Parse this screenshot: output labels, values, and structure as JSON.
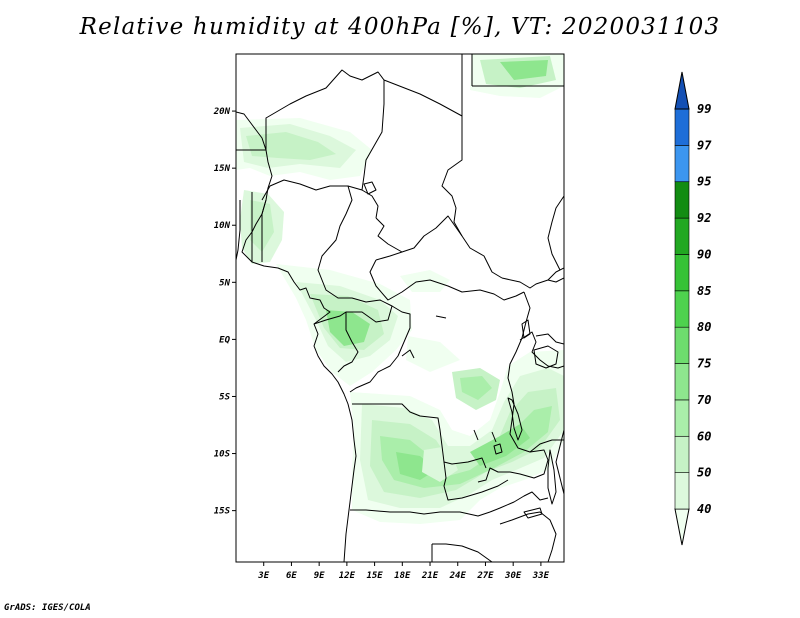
{
  "title": "Relative humidity at 400hPa [%], VT: 2020031103",
  "credit": "GrADS: IGES/COLA",
  "map": {
    "lon_range": [
      0,
      35.5
    ],
    "lat_range": [
      -19.5,
      25
    ],
    "x_ticks": [
      "3E",
      "6E",
      "9E",
      "12E",
      "15E",
      "18E",
      "21E",
      "24E",
      "27E",
      "30E",
      "33E"
    ],
    "x_tick_values": [
      3,
      6,
      9,
      12,
      15,
      18,
      21,
      24,
      27,
      30,
      33
    ],
    "y_ticks": [
      "20N",
      "15N",
      "10N",
      "5N",
      "EQ",
      "5S",
      "10S",
      "15S"
    ],
    "y_tick_values": [
      20,
      15,
      10,
      5,
      0,
      -5,
      -10,
      -15
    ]
  },
  "colorbar": {
    "levels": [
      "40",
      "50",
      "60",
      "70",
      "75",
      "80",
      "85",
      "90",
      "92",
      "95",
      "97",
      "99"
    ],
    "colors": [
      "#f0fff0",
      "#dcf8dc",
      "#c6f2c6",
      "#aaeeaa",
      "#8ee68e",
      "#6edc6e",
      "#4ed24e",
      "#36c236",
      "#22a822",
      "#128c12",
      "#3c96f0",
      "#1e6ed8",
      "#1450b4"
    ]
  },
  "field_colors": {
    "c40": "#f0fff0",
    "c50": "#dcf8dc",
    "c60": "#c6f2c6",
    "c70": "#aaeeaa",
    "c75": "#8ee68e",
    "c80": "#6edc6e"
  }
}
